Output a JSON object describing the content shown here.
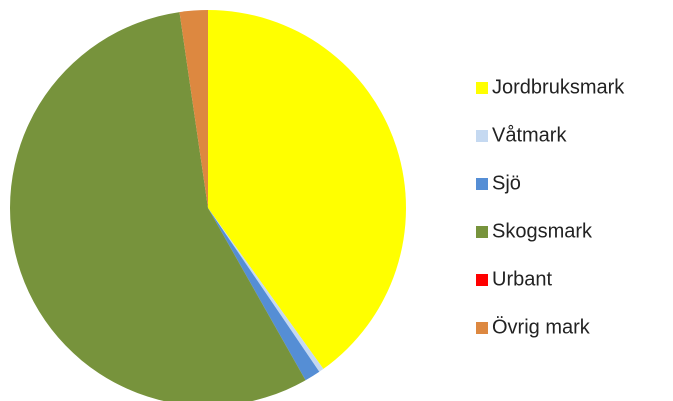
{
  "chart_data": {
    "type": "pie",
    "categories": [
      "Jordbruksmark",
      "Våtmark",
      "Sjö",
      "Skogsmark",
      "Urbant",
      "Övrig mark"
    ],
    "values": [
      40.1,
      0.4,
      1.3,
      55.9,
      0,
      2.3
    ],
    "colors": [
      "#ffff00",
      "#c5d9f1",
      "#558ed5",
      "#77933c",
      "#ff0000",
      "#dd8840"
    ],
    "legend": "right"
  }
}
